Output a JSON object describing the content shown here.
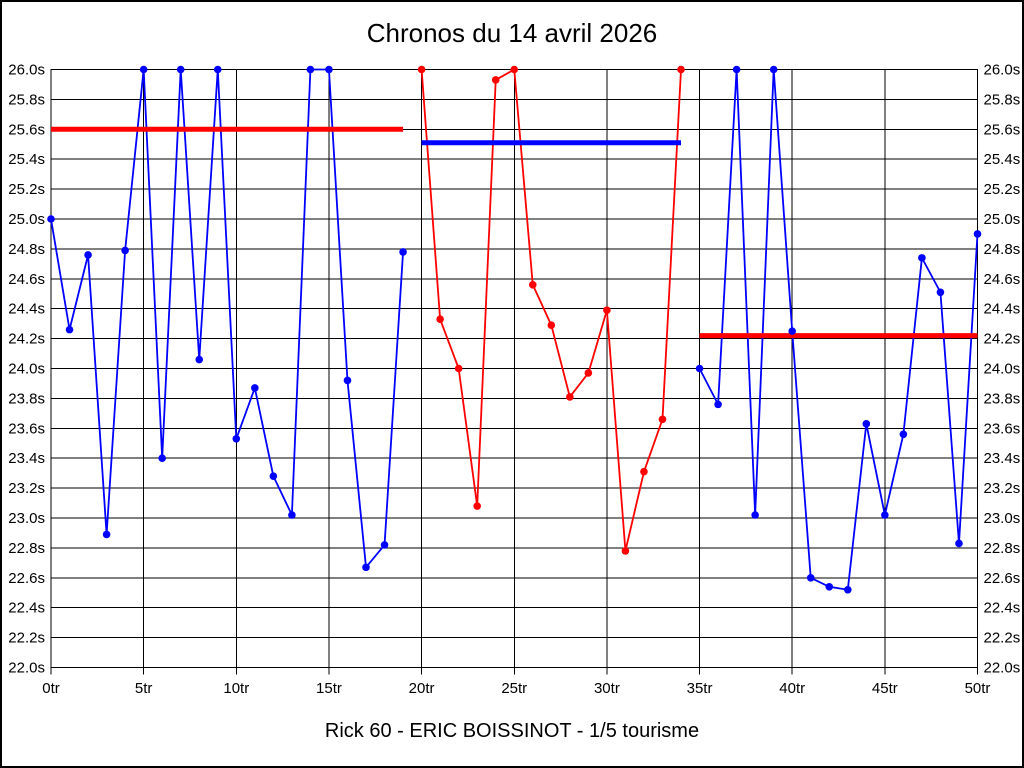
{
  "window": {
    "title": "Chronos du 14 avril 2026",
    "subtitle": "Rick 60 - ERIC BOISSINOT - 1/5 tourisme"
  },
  "colors": {
    "blue_series": "#0000FF",
    "red_series": "#FF0000",
    "grid": "#000000",
    "background": "#FFFFFF"
  },
  "chart_data": {
    "type": "line",
    "title": "Chronos du 14 avril 2026",
    "footer": "Rick 60 - ERIC BOISSINOT - 1/5 tourisme",
    "x_unit": "tr",
    "y_unit": "s",
    "xlim": [
      0,
      50
    ],
    "ylim": [
      22.0,
      26.0
    ],
    "grid": true,
    "legend": "none",
    "x_ticks": {
      "values": [
        0,
        5,
        10,
        15,
        20,
        25,
        30,
        35,
        40,
        45,
        50
      ],
      "labels": [
        "0tr",
        "5tr",
        "10tr",
        "15tr",
        "20tr",
        "25tr",
        "30tr",
        "35tr",
        "40tr",
        "45tr",
        "50tr"
      ]
    },
    "y_ticks": {
      "values": [
        26.0,
        25.8,
        25.6,
        25.4,
        25.2,
        25.0,
        24.8,
        24.6,
        24.4,
        24.2,
        24.0,
        23.8,
        23.6,
        23.4,
        23.2,
        23.0,
        22.8,
        22.6,
        22.4,
        22.2,
        22.0
      ],
      "labels": [
        "26.0s",
        "25.8s",
        "25.6s",
        "25.4s",
        "25.2s",
        "25.0s",
        "24.8s",
        "24.6s",
        "24.4s",
        "24.2s",
        "24.0s",
        "23.8s",
        "23.6s",
        "23.4s",
        "23.2s",
        "23.0s",
        "22.8s",
        "22.6s",
        "22.4s",
        "22.2s",
        "22.0s"
      ]
    },
    "series": [
      {
        "name": "run-1-lap-times",
        "color": "#0000FF",
        "marker": "circle",
        "x": [
          0,
          1,
          2,
          3,
          4,
          5,
          6,
          7,
          8,
          9,
          10,
          11,
          12,
          13,
          14,
          15,
          16,
          17,
          18,
          19
        ],
        "y": [
          25.0,
          24.26,
          24.76,
          22.89,
          24.79,
          26.0,
          23.4,
          26.0,
          24.06,
          26.0,
          23.53,
          23.87,
          23.28,
          23.02,
          26.0,
          26.0,
          23.92,
          22.67,
          22.82,
          24.78
        ]
      },
      {
        "name": "run-2-lap-times",
        "color": "#FF0000",
        "marker": "circle",
        "x": [
          20,
          21,
          22,
          23,
          24,
          25,
          26,
          27,
          28,
          29,
          30,
          31,
          32,
          33,
          34
        ],
        "y": [
          26.0,
          24.33,
          24.0,
          23.08,
          25.93,
          26.0,
          24.56,
          24.29,
          23.81,
          23.97,
          24.39,
          22.78,
          23.31,
          23.66,
          26.0
        ]
      },
      {
        "name": "run-3-lap-times",
        "color": "#0000FF",
        "marker": "circle",
        "x": [
          35,
          36,
          37,
          38,
          39,
          40,
          41,
          42,
          43,
          44,
          45,
          46,
          47,
          48,
          49,
          50
        ],
        "y": [
          24.0,
          23.76,
          26.0,
          23.02,
          26.0,
          24.25,
          22.6,
          22.54,
          22.52,
          23.63,
          23.02,
          23.56,
          24.74,
          24.51,
          22.83,
          24.9
        ]
      }
    ],
    "reference_lines": [
      {
        "name": "run-1-reference",
        "color": "#FF0000",
        "y": 25.6,
        "x_start": 0,
        "x_end": 19
      },
      {
        "name": "run-2-reference",
        "color": "#0000FF",
        "y": 25.51,
        "x_start": 20,
        "x_end": 34
      },
      {
        "name": "run-3-reference",
        "color": "#FF0000",
        "y": 24.22,
        "x_start": 35,
        "x_end": 50
      }
    ]
  }
}
